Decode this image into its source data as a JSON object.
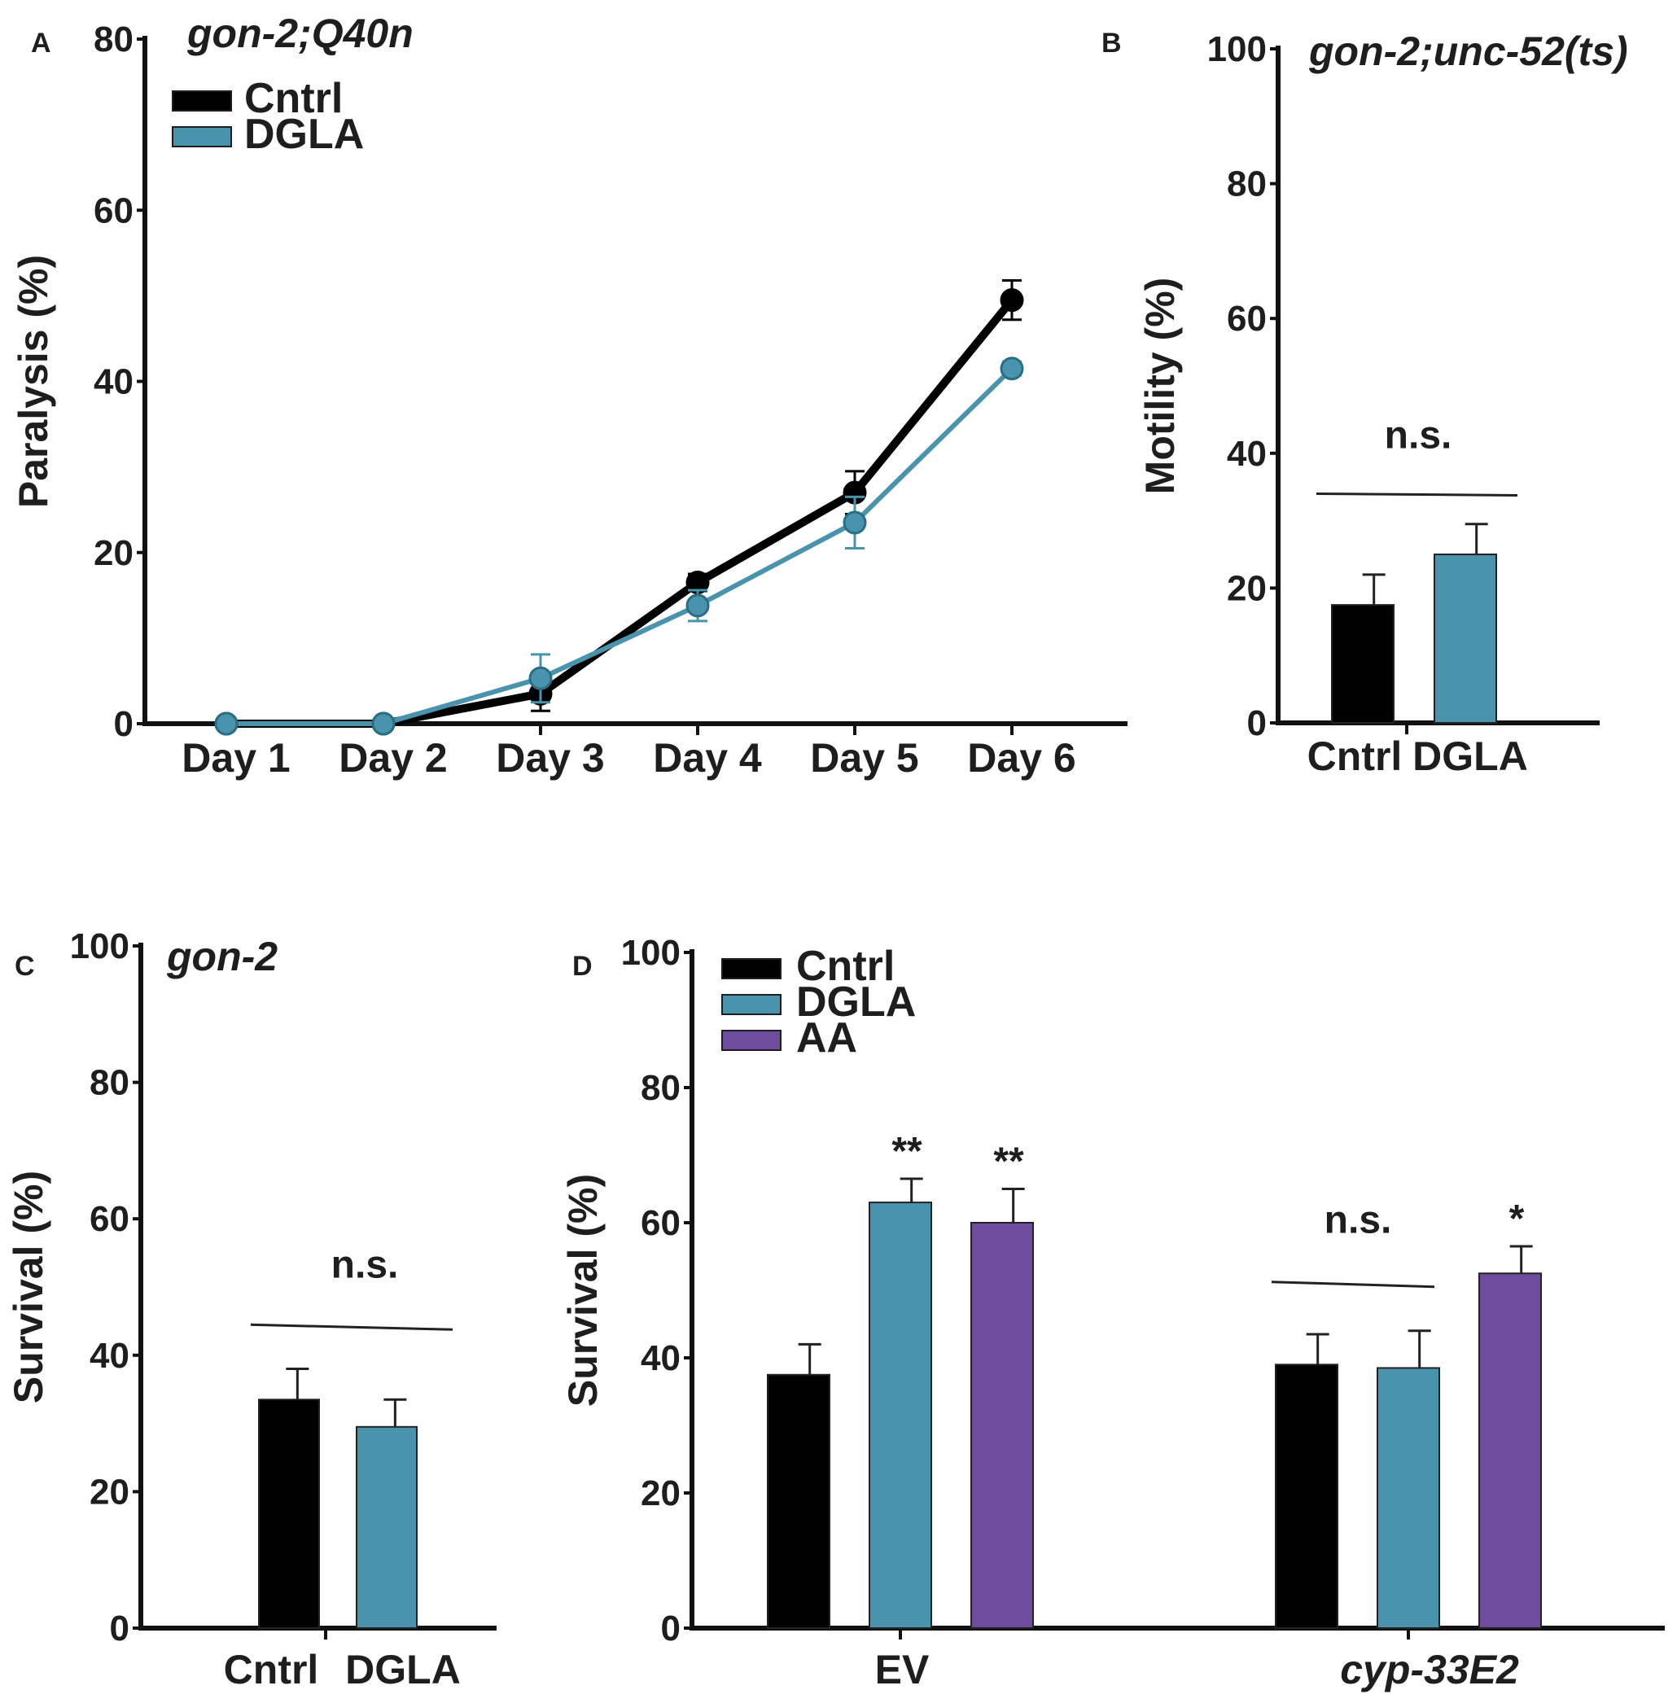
{
  "colors": {
    "cntrl": "#000000",
    "dgla": "#4a93ad",
    "aa": "#6e4c9e",
    "axis": "#111111"
  },
  "chart_data": [
    {
      "id": "A",
      "panel": "A",
      "type": "line",
      "title": "gon-2;Q40n",
      "ylabel": "Paralysis (%)",
      "xlabel": "",
      "ylim": [
        0,
        80
      ],
      "yticks": [
        0,
        20,
        40,
        60,
        80
      ],
      "categories": [
        "Day 1",
        "Day 2",
        "Day 3",
        "Day 4",
        "Day 5",
        "Day 6"
      ],
      "legend": [
        "Cntrl",
        "DGLA"
      ],
      "series": [
        {
          "name": "Cntrl",
          "color": "#000000",
          "values": [
            0,
            0,
            3.5,
            16.5,
            27,
            49.5
          ],
          "errors": [
            0,
            0,
            2.0,
            1.0,
            2.5,
            2.3
          ]
        },
        {
          "name": "DGLA",
          "color": "#4a93ad",
          "values": [
            0,
            0,
            5.3,
            13.8,
            23.5,
            41.5
          ],
          "errors": [
            0,
            0,
            2.8,
            1.8,
            3.0,
            0.8
          ]
        }
      ]
    },
    {
      "id": "B",
      "panel": "B",
      "type": "bar",
      "title": "gon-2;unc-52(ts)",
      "ylabel": "Motility (%)",
      "ylim": [
        0,
        100
      ],
      "yticks": [
        0,
        20,
        40,
        60,
        80,
        100
      ],
      "categories": [
        "Cntrl",
        "DGLA"
      ],
      "values": [
        17.5,
        25
      ],
      "errors": [
        4.5,
        4.5
      ],
      "bar_colors": [
        "#000000",
        "#4a93ad"
      ],
      "annotations": [
        {
          "text": "n.s.",
          "y": 34
        }
      ]
    },
    {
      "id": "C",
      "panel": "C",
      "type": "bar",
      "title": "gon-2",
      "ylabel": "Survival (%)",
      "ylim": [
        0,
        100
      ],
      "yticks": [
        0,
        20,
        40,
        60,
        80,
        100
      ],
      "categories": [
        "Cntrl",
        "DGLA"
      ],
      "values": [
        33.5,
        29.5
      ],
      "errors": [
        4.5,
        4.0
      ],
      "bar_colors": [
        "#000000",
        "#4a93ad"
      ],
      "annotations": [
        {
          "text": "n.s.",
          "y": 44
        }
      ]
    },
    {
      "id": "D",
      "panel": "D",
      "type": "bar",
      "title": "",
      "ylabel": "Survival (%)",
      "ylim": [
        0,
        100
      ],
      "yticks": [
        0,
        20,
        40,
        60,
        80,
        100
      ],
      "categories": [
        "EV",
        "cyp-33E2"
      ],
      "legend": [
        "Cntrl",
        "DGLA",
        "AA"
      ],
      "series": [
        {
          "name": "Cntrl",
          "color": "#000000",
          "values": [
            37.5,
            39
          ],
          "errors": [
            4.5,
            4.5
          ]
        },
        {
          "name": "DGLA",
          "color": "#4a93ad",
          "values": [
            63,
            38.5
          ],
          "errors": [
            3.5,
            5.5
          ]
        },
        {
          "name": "AA",
          "color": "#6e4c9e",
          "values": [
            60,
            52.5
          ],
          "errors": [
            5.0,
            4.0
          ]
        }
      ],
      "significance": [
        {
          "category": "EV",
          "series": "DGLA",
          "label": "**"
        },
        {
          "category": "EV",
          "series": "AA",
          "label": "**"
        },
        {
          "category": "cyp-33E2",
          "series": "AA",
          "label": "*"
        }
      ],
      "annotations": [
        {
          "text": "n.s.",
          "category": "cyp-33E2",
          "y": 51
        }
      ]
    }
  ]
}
